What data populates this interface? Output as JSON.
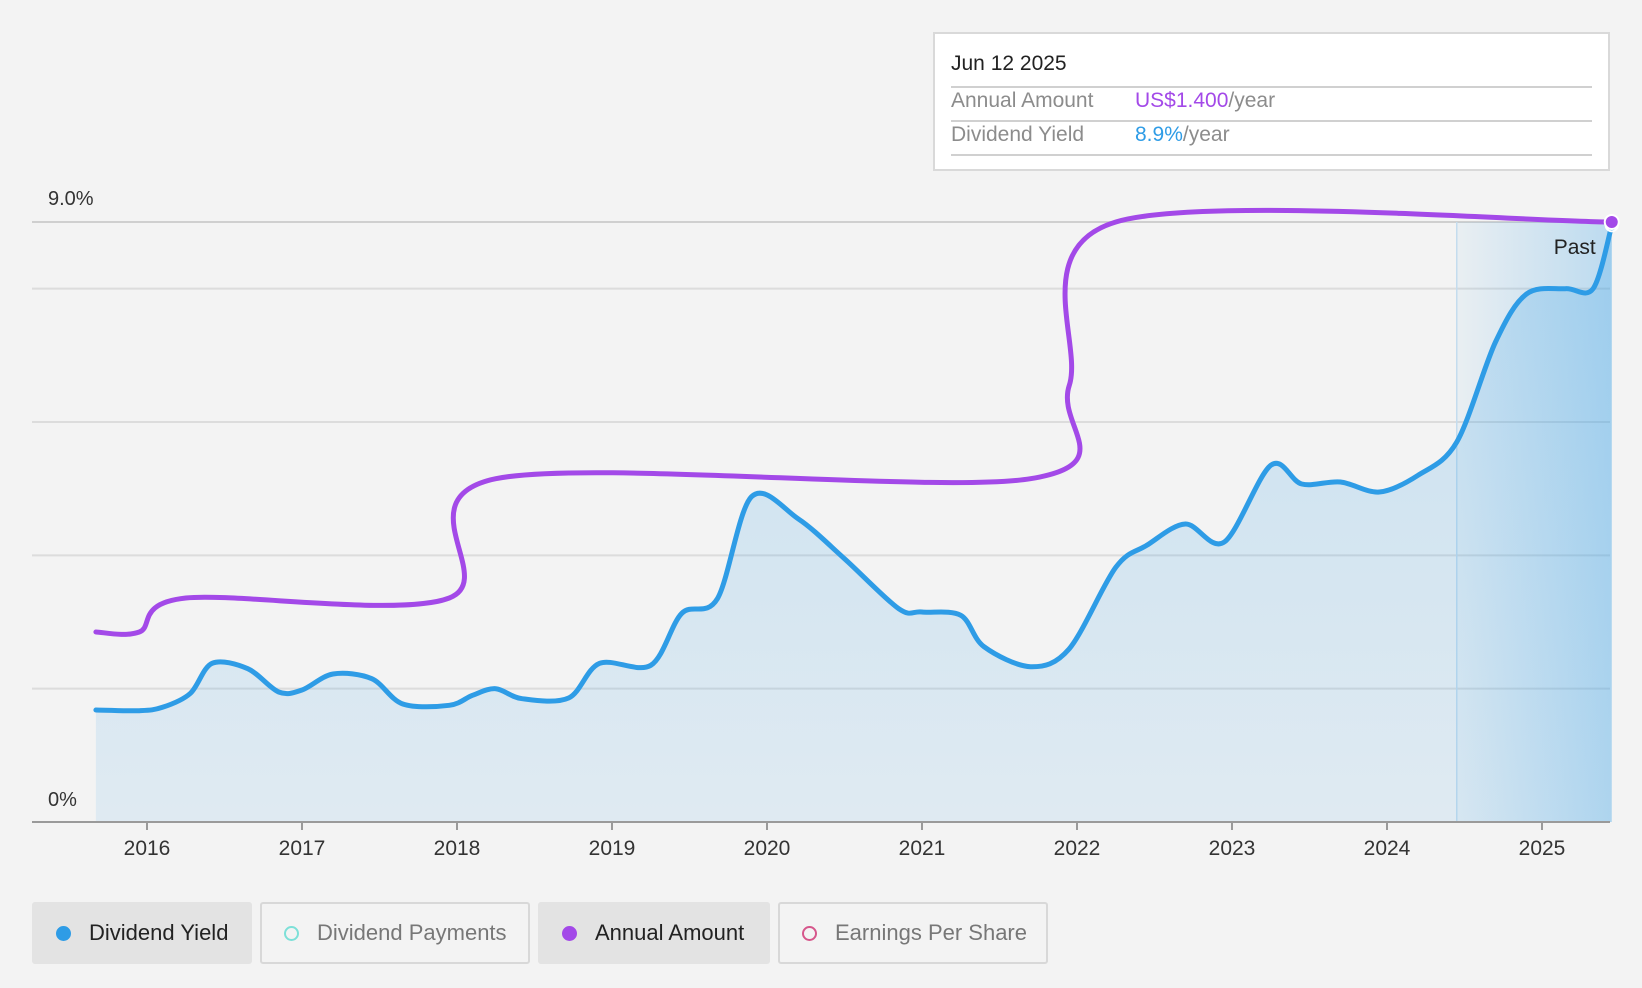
{
  "chart_data": {
    "type": "line",
    "x_axis": {
      "ticks": [
        "2016",
        "2017",
        "2018",
        "2019",
        "2020",
        "2021",
        "2022",
        "2023",
        "2024",
        "2025"
      ],
      "range": [
        2015.67,
        2025.45
      ]
    },
    "y_axis": {
      "top_label": "9.0%",
      "bottom_label": "0%",
      "range": [
        0,
        9.0
      ],
      "gridlines": [
        0,
        2,
        4,
        6,
        8,
        9
      ]
    },
    "past_marker": {
      "label": "Past",
      "start_year": 2024.45,
      "end_year": 2025.45
    },
    "series": [
      {
        "name": "Dividend Yield",
        "color": "#2e9ce6",
        "unit": "%",
        "area": true,
        "points": [
          [
            2015.67,
            1.68
          ],
          [
            2015.95,
            1.67
          ],
          [
            2016.1,
            1.72
          ],
          [
            2016.28,
            1.93
          ],
          [
            2016.42,
            2.38
          ],
          [
            2016.65,
            2.3
          ],
          [
            2016.85,
            1.95
          ],
          [
            2017.0,
            1.98
          ],
          [
            2017.2,
            2.22
          ],
          [
            2017.45,
            2.15
          ],
          [
            2017.65,
            1.77
          ],
          [
            2017.95,
            1.75
          ],
          [
            2018.1,
            1.9
          ],
          [
            2018.25,
            2.0
          ],
          [
            2018.42,
            1.85
          ],
          [
            2018.72,
            1.86
          ],
          [
            2018.92,
            2.38
          ],
          [
            2019.25,
            2.35
          ],
          [
            2019.45,
            3.13
          ],
          [
            2019.68,
            3.35
          ],
          [
            2019.9,
            4.88
          ],
          [
            2020.2,
            4.55
          ],
          [
            2020.5,
            3.95
          ],
          [
            2020.85,
            3.2
          ],
          [
            2021.0,
            3.15
          ],
          [
            2021.25,
            3.1
          ],
          [
            2021.4,
            2.63
          ],
          [
            2021.7,
            2.33
          ],
          [
            2021.95,
            2.6
          ],
          [
            2022.25,
            3.82
          ],
          [
            2022.45,
            4.15
          ],
          [
            2022.7,
            4.47
          ],
          [
            2022.95,
            4.2
          ],
          [
            2023.25,
            5.35
          ],
          [
            2023.45,
            5.07
          ],
          [
            2023.7,
            5.1
          ],
          [
            2023.95,
            4.95
          ],
          [
            2024.2,
            5.2
          ],
          [
            2024.45,
            5.7
          ],
          [
            2024.7,
            7.2
          ],
          [
            2024.9,
            7.92
          ],
          [
            2025.15,
            8.0
          ],
          [
            2025.33,
            8.0
          ],
          [
            2025.45,
            8.95
          ]
        ]
      },
      {
        "name": "Annual Amount",
        "color": "#a349e8",
        "area": false,
        "points": [
          [
            2015.67,
            2.85
          ],
          [
            2015.95,
            2.85
          ],
          [
            2016.25,
            3.36
          ],
          [
            2017.95,
            3.36
          ],
          [
            2018.25,
            5.15
          ],
          [
            2021.7,
            5.15
          ],
          [
            2021.95,
            6.55
          ],
          [
            2022.25,
            9.0
          ],
          [
            2025.45,
            9.0
          ]
        ]
      }
    ],
    "tooltip": {
      "date": "Jun 12 2025",
      "rows": [
        {
          "label": "Annual Amount",
          "value": "US$1.400",
          "suffix": "/year",
          "color": "#a349e8"
        },
        {
          "label": "Dividend Yield",
          "value": "8.9%",
          "suffix": "/year",
          "color": "#2e9ce6"
        }
      ]
    },
    "legend": [
      {
        "label": "Dividend Yield",
        "color": "#2e9ce6",
        "active": true,
        "filled": true
      },
      {
        "label": "Dividend Payments",
        "color": "#7de0d8",
        "active": false,
        "filled": false
      },
      {
        "label": "Annual Amount",
        "color": "#a349e8",
        "active": true,
        "filled": true
      },
      {
        "label": "Earnings Per Share",
        "color": "#d6568b",
        "active": false,
        "filled": false
      }
    ]
  }
}
